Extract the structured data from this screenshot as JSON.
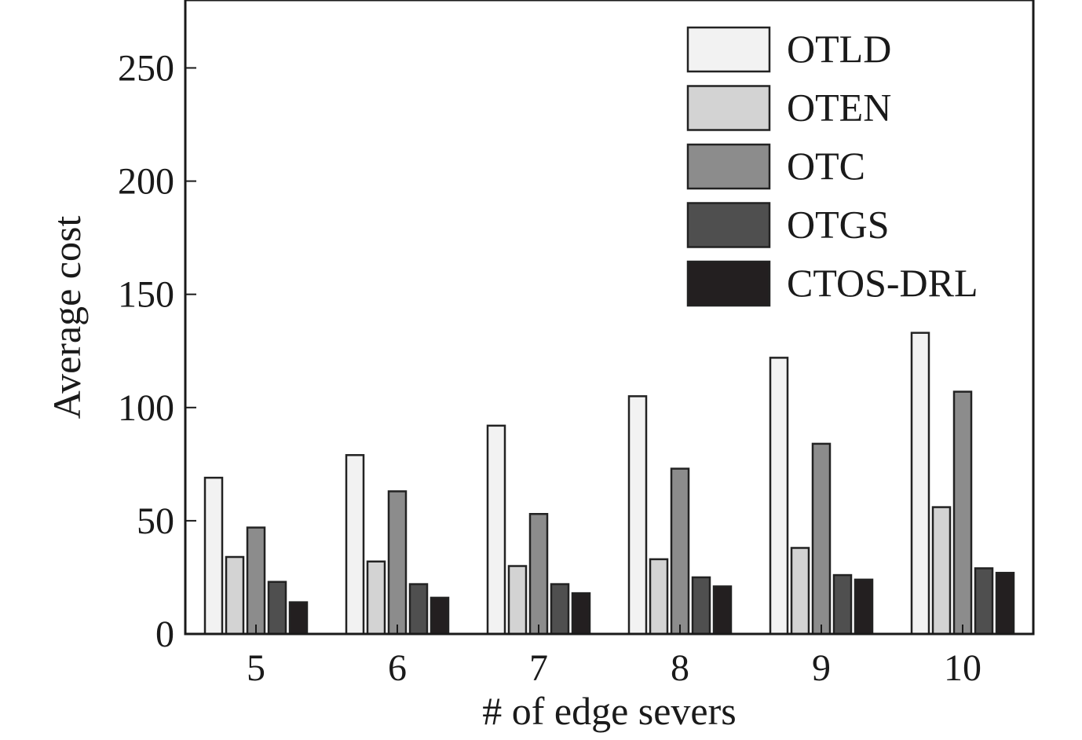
{
  "chart_data": {
    "type": "bar",
    "title": "",
    "xlabel": "# of edge severs",
    "ylabel": "Average cost",
    "categories": [
      "5",
      "6",
      "7",
      "8",
      "9",
      "10"
    ],
    "ylim": [
      0,
      280
    ],
    "yticks": [
      0,
      50,
      100,
      150,
      200,
      250
    ],
    "grid": false,
    "legend_position": "top-right",
    "series": [
      {
        "name": "OTLD",
        "color": "#f2f2f2",
        "values": [
          69,
          79,
          92,
          105,
          122,
          133
        ]
      },
      {
        "name": "OTEN",
        "color": "#d3d3d3",
        "values": [
          34,
          32,
          30,
          33,
          38,
          56
        ]
      },
      {
        "name": "OTC",
        "color": "#8c8c8c",
        "values": [
          47,
          63,
          53,
          73,
          84,
          107
        ]
      },
      {
        "name": "OTGS",
        "color": "#4f4f4f",
        "values": [
          23,
          22,
          22,
          25,
          26,
          29
        ]
      },
      {
        "name": "CTOS-DRL",
        "color": "#231f20",
        "values": [
          14,
          16,
          18,
          21,
          24,
          27
        ]
      }
    ]
  }
}
